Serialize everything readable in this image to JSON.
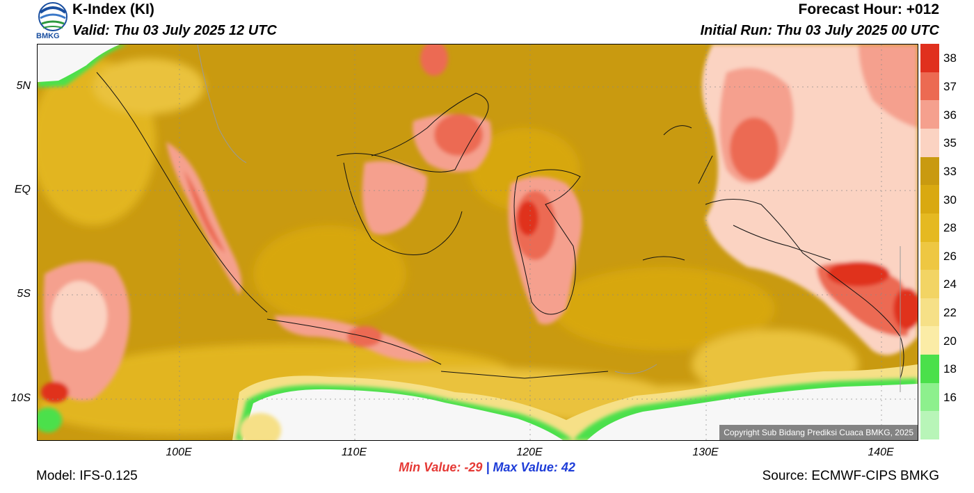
{
  "header": {
    "title": "K-Index (KI)",
    "valid": "Valid: Thu 03 July 2025 12 UTC",
    "forecast_hour": "Forecast Hour: +012",
    "initial_run": "Initial Run: Thu 03 July 2025 00 UTC",
    "logo_text": "BMKG"
  },
  "map": {
    "lat_labels": [
      "5N",
      "EQ",
      "5S",
      "10S"
    ],
    "lon_labels": [
      "100E",
      "110E",
      "120E",
      "130E",
      "140E"
    ],
    "copyright": "Copyright Sub Bidang Prediksi Cuaca BMKG, 2025"
  },
  "colorbar": {
    "labels": [
      "38",
      "37",
      "36",
      "35",
      "33",
      "30",
      "28",
      "26",
      "24",
      "22",
      "20",
      "18",
      "16"
    ],
    "colors": [
      "#e0301e",
      "#ec6a52",
      "#f5a08e",
      "#fbd3c2",
      "#c99a10",
      "#d9a911",
      "#e5b921",
      "#eec742",
      "#f2d464",
      "#f6e087",
      "#fbeca6",
      "#4be04b",
      "#8df08d",
      "#b8f5b8"
    ]
  },
  "stats": {
    "min_label": "Min Value: -29",
    "sep": "|",
    "max_label": "Max Value:  42"
  },
  "footer": {
    "model": "Model: IFS-0.125",
    "source": "Source: ECMWF-CIPS BMKG"
  }
}
